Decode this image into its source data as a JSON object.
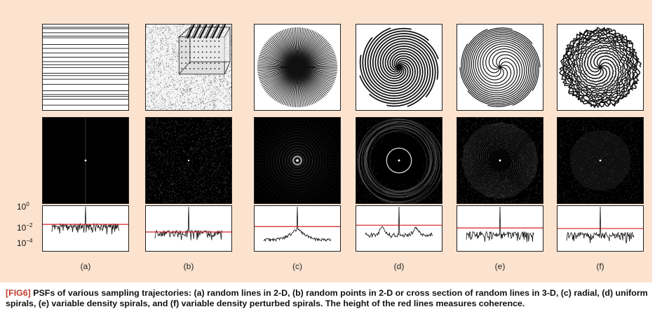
{
  "figure": {
    "panels": [
      {
        "id": "a",
        "label": "(a)",
        "trajectory": "random-lines-2d",
        "psf": "random-lines",
        "baseline": 0.018,
        "noise": 0.009
      },
      {
        "id": "b",
        "label": "(b)",
        "trajectory": "random-points-2d",
        "psf": "random-points",
        "baseline": 0.0032,
        "noise": 0.002
      },
      {
        "id": "c",
        "label": "(c)",
        "trajectory": "radial",
        "psf": "radial",
        "baseline": 0.011,
        "noise": 0.0006
      },
      {
        "id": "d",
        "label": "(d)",
        "trajectory": "uniform-spiral",
        "psf": "uniform-spiral",
        "baseline": 0.015,
        "noise": 0.0012
      },
      {
        "id": "e",
        "label": "(e)",
        "trajectory": "variable-density-spiral",
        "psf": "variable-spiral",
        "baseline": 0.008,
        "noise": 0.0015
      },
      {
        "id": "f",
        "label": "(f)",
        "trajectory": "perturbed-spiral",
        "psf": "perturbed-spiral",
        "baseline": 0.007,
        "noise": 0.0012
      }
    ],
    "y_axis": {
      "scale": "log",
      "range": [
        5e-05,
        1
      ],
      "ticks": [
        {
          "base": "10",
          "exp": "0"
        },
        {
          "base": "10",
          "exp": "−2"
        },
        {
          "base": "10",
          "exp": "−4"
        }
      ]
    },
    "colors": {
      "panel_bg": "#fce3cf",
      "coherence_line": "#d62020",
      "caption_tag": "#c0392b"
    }
  },
  "caption": {
    "tag": "[FIG6]",
    "text": "PSFs of various sampling trajectories: (a) random lines in 2-D, (b) random points in 2-D or cross section of random lines in 3-D, (c) radial, (d) uniform spirals, (e) variable density spirals, and (f) variable density perturbed spirals. The height of the red lines measures coherence."
  }
}
